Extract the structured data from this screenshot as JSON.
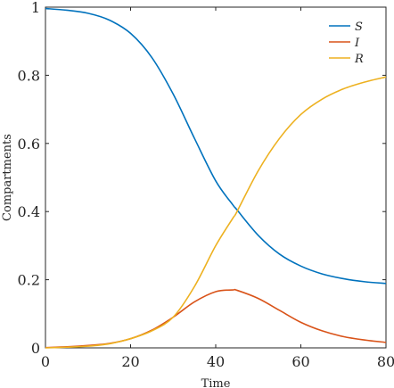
{
  "chart_data": {
    "type": "line",
    "xlabel": "Time",
    "ylabel": "Compartments",
    "xlim": [
      0,
      80
    ],
    "ylim": [
      0,
      1
    ],
    "xticks": [
      0,
      20,
      40,
      60,
      80
    ],
    "yticks": [
      0,
      0.2,
      0.4,
      0.6,
      0.8,
      1
    ],
    "ytick_labels": [
      "0",
      "0.2",
      "0.4",
      "0.6",
      "0.8",
      "1"
    ],
    "grid": false,
    "legend_position": "top-right",
    "x": [
      0,
      5,
      10,
      15,
      20,
      25,
      30,
      35,
      40,
      44,
      45,
      50,
      55,
      60,
      65,
      70,
      75,
      80
    ],
    "series": [
      {
        "name": "S",
        "color": "#0072BD",
        "values": [
          0.996,
          0.991,
          0.982,
          0.962,
          0.923,
          0.852,
          0.745,
          0.615,
          0.49,
          0.42,
          0.405,
          0.33,
          0.275,
          0.24,
          0.217,
          0.203,
          0.194,
          0.189
        ]
      },
      {
        "name": "I",
        "color": "#D95319",
        "values": [
          0.001,
          0.003,
          0.007,
          0.013,
          0.027,
          0.052,
          0.09,
          0.135,
          0.165,
          0.17,
          0.169,
          0.145,
          0.11,
          0.075,
          0.05,
          0.033,
          0.023,
          0.016
        ]
      },
      {
        "name": "R",
        "color": "#EDB120",
        "values": [
          0.0,
          0.002,
          0.005,
          0.012,
          0.027,
          0.05,
          0.09,
          0.18,
          0.3,
          0.38,
          0.4,
          0.52,
          0.615,
          0.685,
          0.73,
          0.76,
          0.78,
          0.795
        ]
      }
    ]
  }
}
